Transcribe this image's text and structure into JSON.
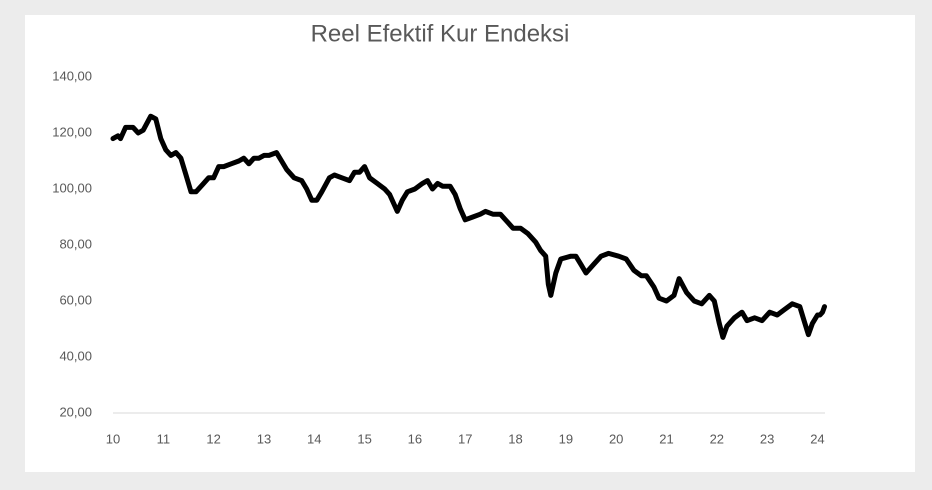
{
  "chart_data": {
    "type": "line",
    "title": "Reel Efektif Kur Endeksi",
    "x": [
      10.0,
      10.1,
      10.15,
      10.25,
      10.4,
      10.5,
      10.6,
      10.75,
      10.85,
      10.95,
      11.05,
      11.15,
      11.25,
      11.35,
      11.45,
      11.55,
      11.65,
      11.8,
      11.9,
      12.0,
      12.1,
      12.2,
      12.35,
      12.5,
      12.6,
      12.7,
      12.8,
      12.9,
      13.0,
      13.1,
      13.25,
      13.35,
      13.45,
      13.6,
      13.75,
      13.85,
      13.95,
      14.05,
      14.15,
      14.3,
      14.4,
      14.55,
      14.7,
      14.8,
      14.9,
      15.0,
      15.1,
      15.25,
      15.4,
      15.5,
      15.65,
      15.75,
      15.85,
      16.0,
      16.15,
      16.25,
      16.35,
      16.45,
      16.55,
      16.7,
      16.8,
      16.9,
      17.0,
      17.15,
      17.3,
      17.4,
      17.55,
      17.7,
      17.85,
      17.95,
      18.1,
      18.25,
      18.4,
      18.5,
      18.6,
      18.65,
      18.7,
      18.8,
      18.9,
      19.1,
      19.2,
      19.3,
      19.4,
      19.55,
      19.7,
      19.85,
      20.05,
      20.2,
      20.35,
      20.5,
      20.6,
      20.75,
      20.85,
      21.0,
      21.15,
      21.25,
      21.4,
      21.55,
      21.7,
      21.85,
      21.95,
      22.05,
      22.12,
      22.2,
      22.35,
      22.5,
      22.6,
      22.75,
      22.9,
      23.05,
      23.2,
      23.35,
      23.5,
      23.65,
      23.75,
      23.82,
      23.9,
      24.0,
      24.05,
      24.1,
      24.14
    ],
    "series": [
      {
        "name": "Reel Efektif Kur Endeksi",
        "color": "#000000",
        "values": [
          118,
          119,
          118,
          122,
          122,
          120,
          121,
          126,
          125,
          118,
          114,
          112,
          113,
          111,
          105,
          99,
          99,
          102,
          104,
          104,
          108,
          108,
          109,
          110,
          111,
          109,
          111,
          111,
          112,
          112,
          113,
          110,
          107,
          104,
          103,
          100,
          96,
          96,
          99,
          104,
          105,
          104,
          103,
          106,
          106,
          108,
          104,
          102,
          100,
          98,
          92,
          96,
          99,
          100,
          102,
          103,
          100,
          102,
          101,
          101,
          98,
          93,
          89,
          90,
          91,
          92,
          91,
          91,
          88,
          86,
          86,
          84,
          81,
          78,
          76,
          66,
          62,
          70,
          75,
          76,
          76,
          73,
          70,
          73,
          76,
          77,
          76,
          75,
          71,
          69,
          69,
          65,
          61,
          60,
          62,
          68,
          63,
          60,
          59,
          62,
          60,
          52,
          47,
          51,
          54,
          56,
          53,
          54,
          53,
          56,
          55,
          57,
          59,
          58,
          52,
          48,
          52,
          55,
          55,
          56,
          58
        ]
      }
    ],
    "xlim": [
      10,
      24.15
    ],
    "xticks": [
      10,
      11,
      12,
      13,
      14,
      15,
      16,
      17,
      18,
      19,
      20,
      21,
      22,
      23,
      24
    ],
    "ylim": [
      20,
      140
    ],
    "yticks": [
      {
        "value": 20,
        "label": "20,00"
      },
      {
        "value": 40,
        "label": "40,00"
      },
      {
        "value": 60,
        "label": "60,00"
      },
      {
        "value": 80,
        "label": "80,00"
      },
      {
        "value": 100,
        "label": "100,00"
      },
      {
        "value": 120,
        "label": "120,00"
      },
      {
        "value": 140,
        "label": "140,00"
      }
    ],
    "grid": false
  }
}
